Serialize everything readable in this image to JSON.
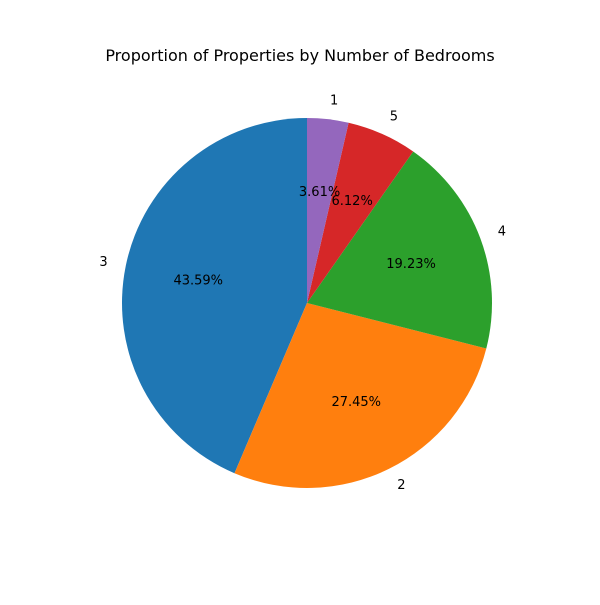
{
  "chart_data": {
    "type": "pie",
    "title": "Proportion of Properties by Number of Bedrooms",
    "start_angle_deg": 90,
    "direction": "counterclockwise",
    "slices": [
      {
        "label": "3",
        "value": 43.59,
        "pct_label": "43.59%",
        "color": "#1f77b4"
      },
      {
        "label": "2",
        "value": 27.45,
        "pct_label": "27.45%",
        "color": "#ff7f0e"
      },
      {
        "label": "4",
        "value": 19.23,
        "pct_label": "19.23%",
        "color": "#2ca02c"
      },
      {
        "label": "5",
        "value": 6.12,
        "pct_label": "6.12%",
        "color": "#d62728"
      },
      {
        "label": "1",
        "value": 3.61,
        "pct_label": "3.61%",
        "color": "#9467bd"
      }
    ]
  }
}
